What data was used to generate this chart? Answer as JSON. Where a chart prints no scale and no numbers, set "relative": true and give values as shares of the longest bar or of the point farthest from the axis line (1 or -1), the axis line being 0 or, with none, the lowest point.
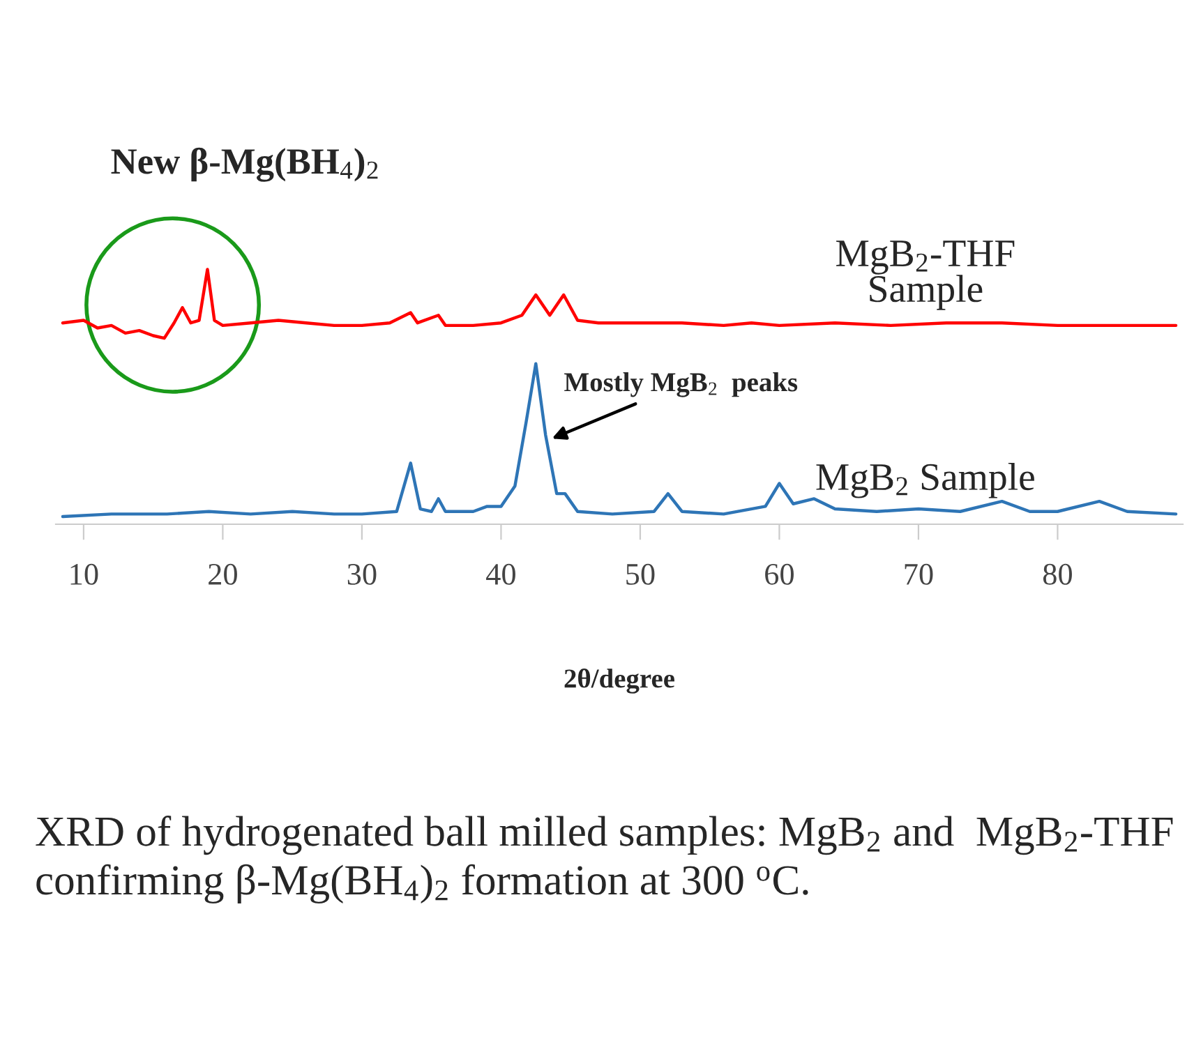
{
  "chart_data": {
    "type": "line",
    "relative": true,
    "xlabel": "2θ/degree",
    "xlim": [
      8,
      89
    ],
    "xticks": [
      10,
      20,
      30,
      40,
      50,
      60,
      70,
      80
    ],
    "tick_labels": "x",
    "grid": false,
    "legend": false,
    "marker": "none",
    "line_style": "solid",
    "series": [
      {
        "name": "MgB$_{2}$-THF Sample",
        "color": "#ff0000",
        "x": [
          8.5,
          10,
          11,
          12,
          13,
          14,
          15,
          15.8,
          16.5,
          17.1,
          17.7,
          18.3,
          18.9,
          19.4,
          20,
          22,
          24,
          26,
          28,
          30,
          32,
          33.5,
          34,
          35.5,
          36,
          38,
          40,
          41.5,
          42.5,
          43.5,
          44.5,
          45.5,
          47,
          50,
          53,
          56,
          58,
          60,
          64,
          68,
          72,
          76,
          80,
          84,
          88.5
        ],
        "values": [
          0.79,
          0.8,
          0.77,
          0.78,
          0.75,
          0.76,
          0.74,
          0.73,
          0.79,
          0.85,
          0.79,
          0.8,
          1.0,
          0.8,
          0.78,
          0.79,
          0.8,
          0.79,
          0.78,
          0.78,
          0.79,
          0.83,
          0.79,
          0.82,
          0.78,
          0.78,
          0.79,
          0.82,
          0.9,
          0.82,
          0.9,
          0.8,
          0.79,
          0.79,
          0.79,
          0.78,
          0.79,
          0.78,
          0.79,
          0.78,
          0.79,
          0.79,
          0.78,
          0.78,
          0.78
        ]
      },
      {
        "name": "MgB$_{2}$ Sample",
        "color": "#2e75b6",
        "x": [
          8.5,
          12,
          16,
          19,
          22,
          25,
          28,
          30,
          32.5,
          33.5,
          34.2,
          35,
          35.5,
          36,
          38,
          39,
          40,
          41,
          41.8,
          42.5,
          43.2,
          44,
          44.6,
          45.5,
          48,
          51,
          52,
          53,
          56,
          59,
          60,
          61,
          62.5,
          64,
          67,
          70,
          73,
          76,
          78,
          80,
          83,
          85,
          88.5
        ],
        "values": [
          0.03,
          0.04,
          0.04,
          0.05,
          0.04,
          0.05,
          0.04,
          0.04,
          0.05,
          0.24,
          0.06,
          0.05,
          0.1,
          0.05,
          0.05,
          0.07,
          0.07,
          0.15,
          0.4,
          0.63,
          0.35,
          0.12,
          0.12,
          0.05,
          0.04,
          0.05,
          0.12,
          0.05,
          0.04,
          0.07,
          0.16,
          0.08,
          0.1,
          0.06,
          0.05,
          0.06,
          0.05,
          0.09,
          0.05,
          0.05,
          0.09,
          0.05,
          0.04
        ]
      }
    ],
    "annotations": [
      "New β-Mg(BH$_{4}$)$_{2}$",
      {
        "text": "Mostly MgB$_{2}$  peaks",
        "x": 43.4,
        "y": 0.33
      },
      "XRD of hydrogenated ball milled samples: MgB$_{2}$ and  MgB$_{2}$-THF confirming β-Mg(BH$_{4}$)$_{2}$ formation at 300 $^{o}$C."
    ]
  }
}
